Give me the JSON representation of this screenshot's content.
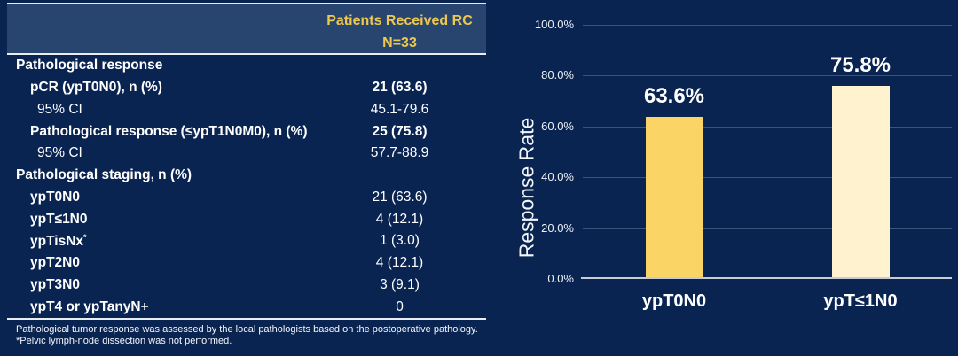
{
  "table": {
    "header": {
      "title": "Patients Received RC",
      "subtitle": "N=33"
    },
    "rows": [
      {
        "label": "Pathological response",
        "value": ""
      },
      {
        "label": "pCR (ypT0N0), n (%)",
        "value": "21 (63.6)"
      },
      {
        "label": "95% CI",
        "value": "45.1-79.6"
      },
      {
        "label": "Pathological response (≤ypT1N0M0), n (%)",
        "value": "25 (75.8)"
      },
      {
        "label": "95% CI",
        "value": "57.7-88.9"
      },
      {
        "label": "Pathological staging, n (%)",
        "value": ""
      },
      {
        "label": "ypT0N0",
        "value": "21 (63.6)"
      },
      {
        "label": "ypT≤1N0",
        "value": "4 (12.1)"
      },
      {
        "label": "ypTisNx",
        "sup": "*",
        "value": "1 (3.0)"
      },
      {
        "label": "ypT2N0",
        "value": "4 (12.1)"
      },
      {
        "label": "ypT3N0",
        "value": "3 (9.1)"
      },
      {
        "label": "ypT4 or ypTanyN+",
        "value": "0"
      }
    ],
    "footnotes": [
      "Pathological tumor response was assessed by the local pathologists based on the postoperative pathology.",
      "*Pelvic lymph-node dissection was not performed."
    ]
  },
  "chart_data": {
    "type": "bar",
    "categories": [
      "ypT0N0",
      "ypT≤1N0"
    ],
    "values": [
      63.6,
      75.8
    ],
    "value_labels": [
      "63.6%",
      "75.8%"
    ],
    "bar_colors": [
      "#FAD566",
      "#FFF2CF"
    ],
    "title": "",
    "xlabel": "",
    "ylabel": "Response Rate",
    "ylim": [
      0,
      100
    ],
    "yticks": [
      0,
      20,
      40,
      60,
      80,
      100
    ],
    "ytick_labels": [
      "0.0%",
      "20.0%",
      "40.0%",
      "60.0%",
      "80.0%",
      "100.0%"
    ],
    "grid": true,
    "legend": false
  },
  "colors": {
    "background": "#0A2452",
    "header_band": "#27456F",
    "header_text": "#EDC84F",
    "table_text": "#FFFFFF",
    "rule": "#E9EDF2",
    "axis_line": "#C6CBD4"
  }
}
